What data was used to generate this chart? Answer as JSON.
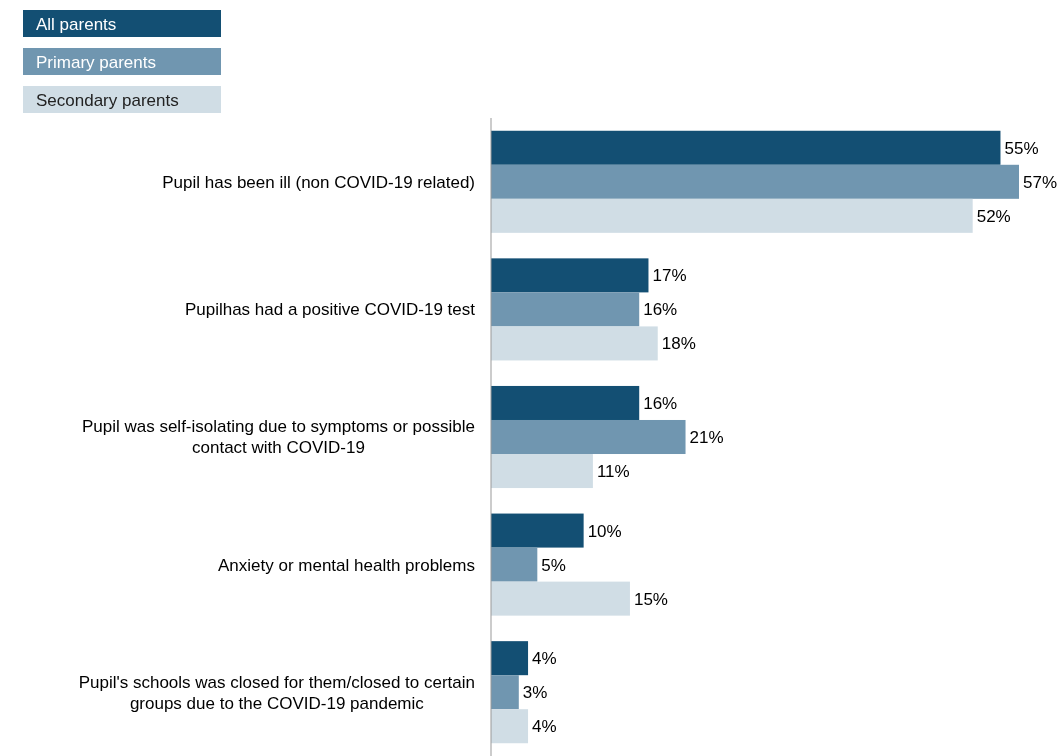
{
  "chart_data": {
    "type": "bar",
    "orientation": "horizontal",
    "categories": [
      "Pupil has been ill (non COVID-19 related)",
      "Pupilhas had a positive COVID-19 test",
      "Pupil was self-isolating due to symptoms or possible contact with COVID-19",
      "Anxiety or mental health problems",
      "Pupil's schools was closed for them/closed to certain groups due to the COVID-19 pandemic"
    ],
    "series": [
      {
        "name": "All parents",
        "color": "#134f73",
        "values": [
          55,
          17,
          16,
          10,
          4
        ],
        "value_labels": [
          "55%",
          "17%",
          "16%",
          "10%",
          "4%"
        ]
      },
      {
        "name": "Primary parents",
        "color": "#7096b0",
        "values": [
          57,
          16,
          21,
          5,
          3
        ],
        "value_labels": [
          "57%",
          "16%",
          "21%",
          "5%",
          "3%"
        ]
      },
      {
        "name": "Secondary parents",
        "color": "#d0dde5",
        "values": [
          52,
          18,
          11,
          15,
          4
        ],
        "value_labels": [
          "52%",
          "18%",
          "11%",
          "15%",
          "4%"
        ]
      }
    ],
    "legend": "top left",
    "grid": false
  }
}
